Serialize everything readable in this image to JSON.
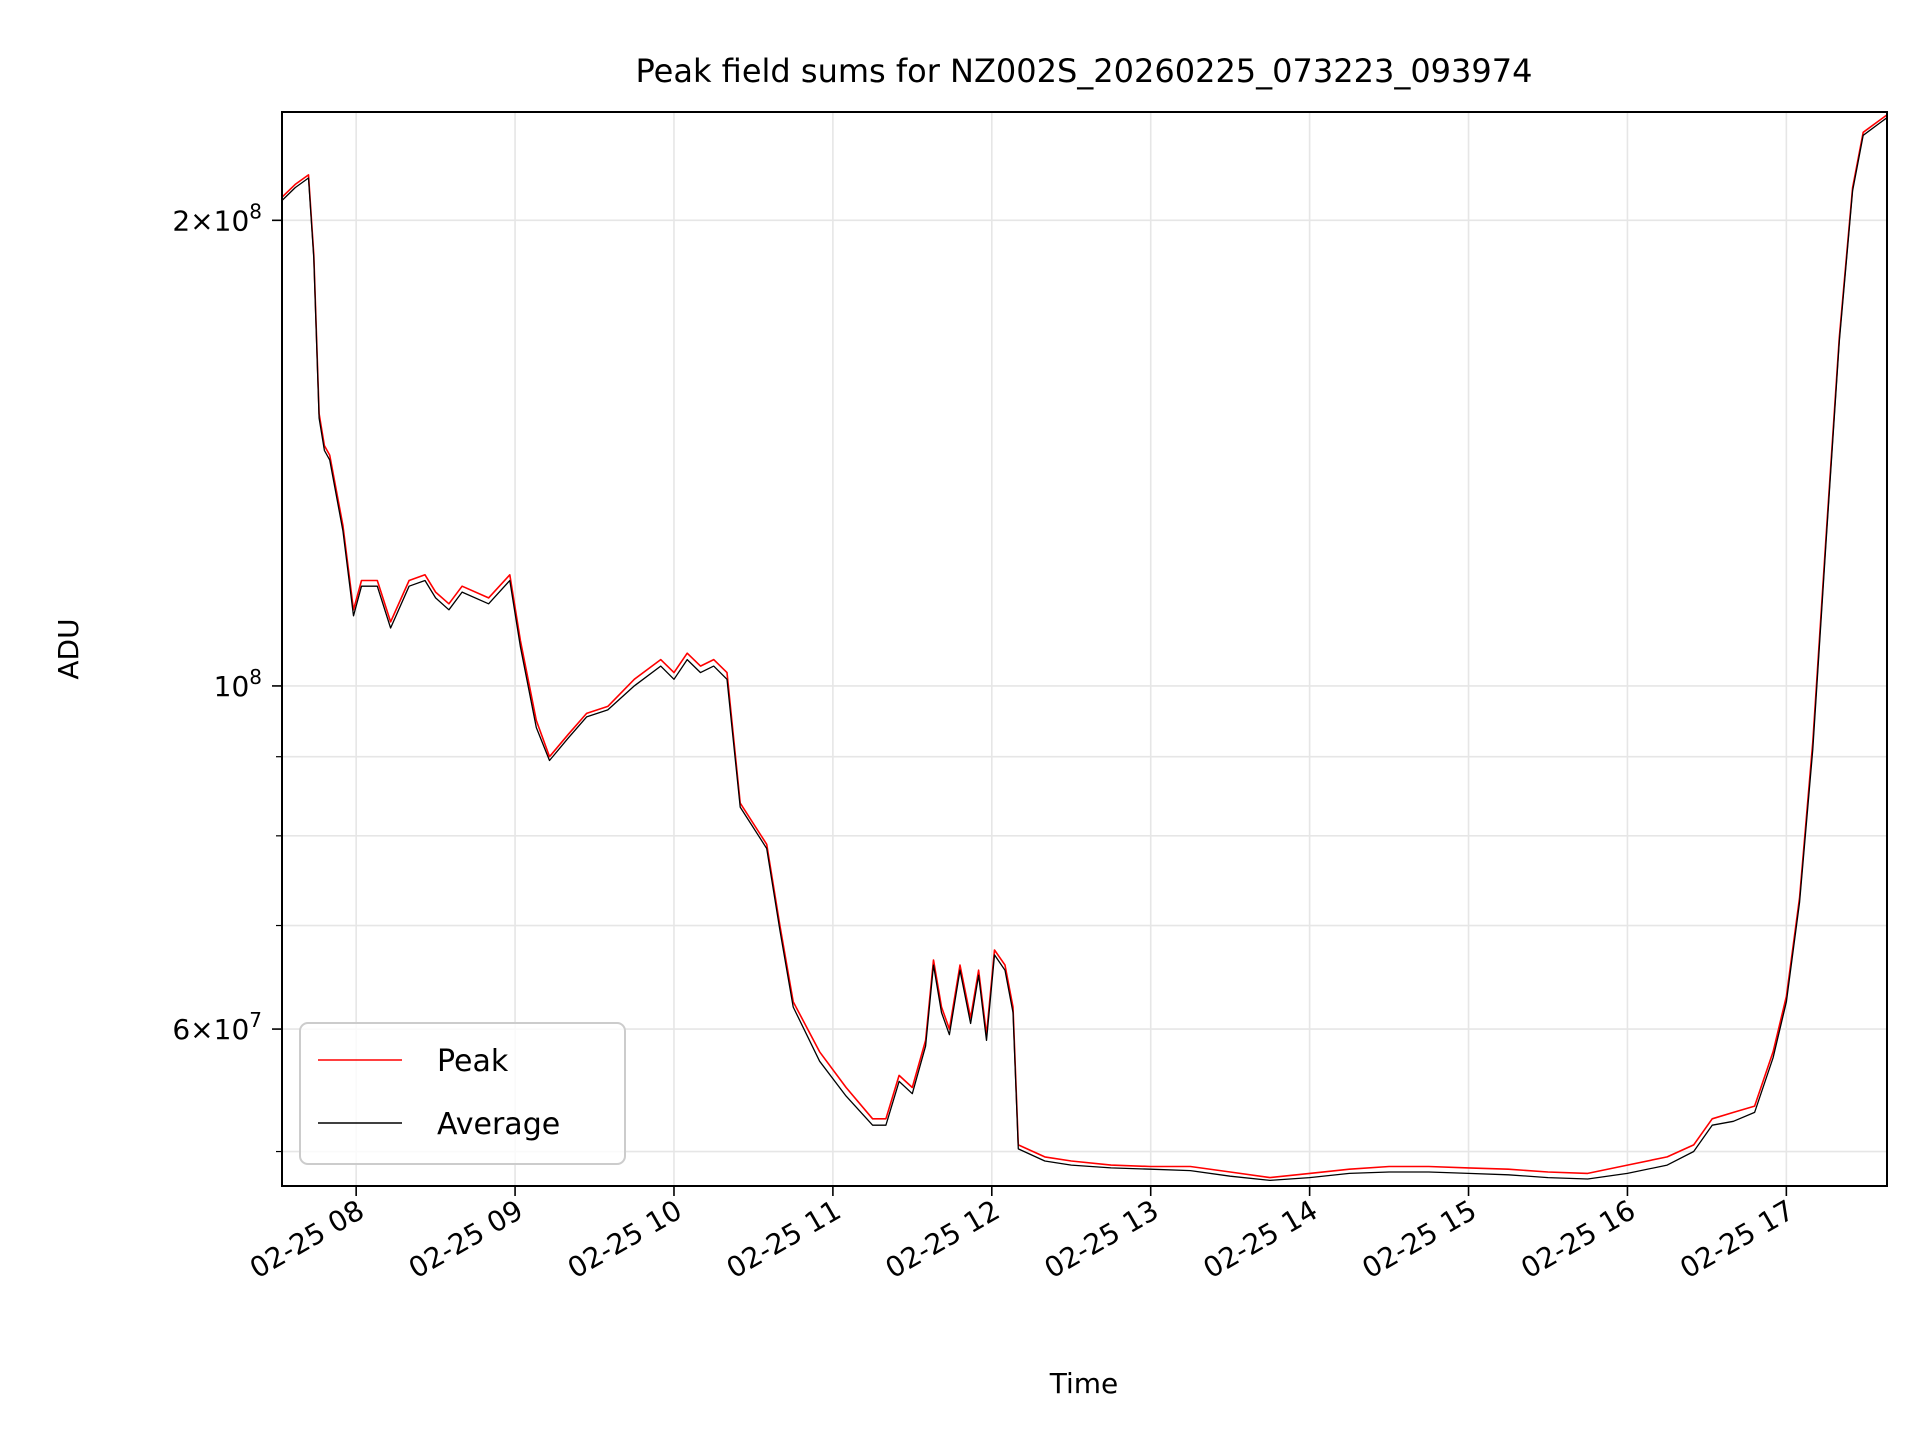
{
  "chart_data": {
    "type": "line",
    "title": "Peak field sums for NZ002S_20260225_073223_093974",
    "xlabel": "Time",
    "ylabel": "ADU",
    "yscale": "log",
    "grid": true,
    "legend_position": "lower-left",
    "xlim": [
      "2026-02-25 07:32",
      "2026-02-25 17:38"
    ],
    "ylim": [
      47500000,
      235000000
    ],
    "x_ticks": [
      {
        "t": "2026-02-25 08:00",
        "label": "02-25 08"
      },
      {
        "t": "2026-02-25 09:00",
        "label": "02-25 09"
      },
      {
        "t": "2026-02-25 10:00",
        "label": "02-25 10"
      },
      {
        "t": "2026-02-25 11:00",
        "label": "02-25 11"
      },
      {
        "t": "2026-02-25 12:00",
        "label": "02-25 12"
      },
      {
        "t": "2026-02-25 13:00",
        "label": "02-25 13"
      },
      {
        "t": "2026-02-25 14:00",
        "label": "02-25 14"
      },
      {
        "t": "2026-02-25 15:00",
        "label": "02-25 15"
      },
      {
        "t": "2026-02-25 16:00",
        "label": "02-25 16"
      },
      {
        "t": "2026-02-25 17:00",
        "label": "02-25 17"
      }
    ],
    "y_major_ticks": [
      {
        "value": 60000000,
        "base": "6",
        "exp": "7"
      },
      {
        "value": 100000000,
        "base": "",
        "exp": "8"
      },
      {
        "value": 200000000,
        "base": "2",
        "exp": "8"
      }
    ],
    "y_minor_ticks": [
      50000000,
      70000000,
      80000000,
      90000000
    ],
    "series": [
      {
        "name": "Peak",
        "color": "#ff0000",
        "points": [
          [
            "2026-02-25 07:32",
            207000000
          ],
          [
            "2026-02-25 07:37",
            211000000
          ],
          [
            "2026-02-25 07:42",
            214000000
          ],
          [
            "2026-02-25 07:44",
            190000000
          ],
          [
            "2026-02-25 07:46",
            150000000
          ],
          [
            "2026-02-25 07:48",
            143000000
          ],
          [
            "2026-02-25 07:50",
            141000000
          ],
          [
            "2026-02-25 07:55",
            127000000
          ],
          [
            "2026-02-25 07:59",
            112000000
          ],
          [
            "2026-02-25 08:02",
            117000000
          ],
          [
            "2026-02-25 08:08",
            117000000
          ],
          [
            "2026-02-25 08:13",
            110000000
          ],
          [
            "2026-02-25 08:20",
            117000000
          ],
          [
            "2026-02-25 08:26",
            118000000
          ],
          [
            "2026-02-25 08:30",
            115000000
          ],
          [
            "2026-02-25 08:35",
            113000000
          ],
          [
            "2026-02-25 08:40",
            116000000
          ],
          [
            "2026-02-25 08:50",
            114000000
          ],
          [
            "2026-02-25 08:58",
            118000000
          ],
          [
            "2026-02-25 09:02",
            107000000
          ],
          [
            "2026-02-25 09:08",
            95000000
          ],
          [
            "2026-02-25 09:13",
            90000000
          ],
          [
            "2026-02-25 09:20",
            93000000
          ],
          [
            "2026-02-25 09:27",
            96000000
          ],
          [
            "2026-02-25 09:35",
            97000000
          ],
          [
            "2026-02-25 09:45",
            101000000
          ],
          [
            "2026-02-25 09:55",
            104000000
          ],
          [
            "2026-02-25 10:00",
            102000000
          ],
          [
            "2026-02-25 10:05",
            105000000
          ],
          [
            "2026-02-25 10:10",
            103000000
          ],
          [
            "2026-02-25 10:15",
            104000000
          ],
          [
            "2026-02-25 10:20",
            102000000
          ],
          [
            "2026-02-25 10:25",
            84000000
          ],
          [
            "2026-02-25 10:35",
            79000000
          ],
          [
            "2026-02-25 10:40",
            70000000
          ],
          [
            "2026-02-25 10:45",
            62500000
          ],
          [
            "2026-02-25 10:55",
            58000000
          ],
          [
            "2026-02-25 11:05",
            55000000
          ],
          [
            "2026-02-25 11:15",
            52500000
          ],
          [
            "2026-02-25 11:20",
            52500000
          ],
          [
            "2026-02-25 11:25",
            56000000
          ],
          [
            "2026-02-25 11:30",
            55000000
          ],
          [
            "2026-02-25 11:35",
            59000000
          ],
          [
            "2026-02-25 11:38",
            66500000
          ],
          [
            "2026-02-25 11:41",
            62000000
          ],
          [
            "2026-02-25 11:44",
            60000000
          ],
          [
            "2026-02-25 11:48",
            66000000
          ],
          [
            "2026-02-25 11:52",
            61000000
          ],
          [
            "2026-02-25 11:55",
            65500000
          ],
          [
            "2026-02-25 11:58",
            59500000
          ],
          [
            "2026-02-25 12:01",
            67500000
          ],
          [
            "2026-02-25 12:05",
            66000000
          ],
          [
            "2026-02-25 12:08",
            62000000
          ],
          [
            "2026-02-25 12:10",
            50500000
          ],
          [
            "2026-02-25 12:20",
            49600000
          ],
          [
            "2026-02-25 12:30",
            49300000
          ],
          [
            "2026-02-25 12:45",
            49000000
          ],
          [
            "2026-02-25 13:00",
            48900000
          ],
          [
            "2026-02-25 13:15",
            48900000
          ],
          [
            "2026-02-25 13:30",
            48500000
          ],
          [
            "2026-02-25 13:45",
            48100000
          ],
          [
            "2026-02-25 14:00",
            48400000
          ],
          [
            "2026-02-25 14:15",
            48700000
          ],
          [
            "2026-02-25 14:30",
            48900000
          ],
          [
            "2026-02-25 14:45",
            48900000
          ],
          [
            "2026-02-25 15:00",
            48800000
          ],
          [
            "2026-02-25 15:15",
            48700000
          ],
          [
            "2026-02-25 15:30",
            48500000
          ],
          [
            "2026-02-25 15:45",
            48400000
          ],
          [
            "2026-02-25 16:00",
            49000000
          ],
          [
            "2026-02-25 16:15",
            49600000
          ],
          [
            "2026-02-25 16:25",
            50500000
          ],
          [
            "2026-02-25 16:32",
            52500000
          ],
          [
            "2026-02-25 16:40",
            53000000
          ],
          [
            "2026-02-25 16:48",
            53500000
          ],
          [
            "2026-02-25 16:55",
            58000000
          ],
          [
            "2026-02-25 17:00",
            63000000
          ],
          [
            "2026-02-25 17:05",
            73000000
          ],
          [
            "2026-02-25 17:10",
            92000000
          ],
          [
            "2026-02-25 17:15",
            125000000
          ],
          [
            "2026-02-25 17:20",
            168000000
          ],
          [
            "2026-02-25 17:25",
            210000000
          ],
          [
            "2026-02-25 17:29",
            228000000
          ],
          [
            "2026-02-25 17:35",
            232000000
          ],
          [
            "2026-02-25 17:38",
            234000000
          ]
        ]
      },
      {
        "name": "Average",
        "color": "#000000",
        "points": [
          [
            "2026-02-25 07:32",
            206000000
          ],
          [
            "2026-02-25 07:37",
            210000000
          ],
          [
            "2026-02-25 07:42",
            213000000
          ],
          [
            "2026-02-25 07:44",
            189000000
          ],
          [
            "2026-02-25 07:46",
            149000000
          ],
          [
            "2026-02-25 07:48",
            142000000
          ],
          [
            "2026-02-25 07:50",
            140000000
          ],
          [
            "2026-02-25 07:55",
            126000000
          ],
          [
            "2026-02-25 07:59",
            111000000
          ],
          [
            "2026-02-25 08:02",
            116000000
          ],
          [
            "2026-02-25 08:08",
            116000000
          ],
          [
            "2026-02-25 08:13",
            109000000
          ],
          [
            "2026-02-25 08:20",
            116000000
          ],
          [
            "2026-02-25 08:26",
            117000000
          ],
          [
            "2026-02-25 08:30",
            114000000
          ],
          [
            "2026-02-25 08:35",
            112000000
          ],
          [
            "2026-02-25 08:40",
            115000000
          ],
          [
            "2026-02-25 08:50",
            113000000
          ],
          [
            "2026-02-25 08:58",
            117000000
          ],
          [
            "2026-02-25 09:02",
            106000000
          ],
          [
            "2026-02-25 09:08",
            94000000
          ],
          [
            "2026-02-25 09:13",
            89500000
          ],
          [
            "2026-02-25 09:20",
            92500000
          ],
          [
            "2026-02-25 09:27",
            95500000
          ],
          [
            "2026-02-25 09:35",
            96500000
          ],
          [
            "2026-02-25 09:45",
            100000000
          ],
          [
            "2026-02-25 09:55",
            103000000
          ],
          [
            "2026-02-25 10:00",
            101000000
          ],
          [
            "2026-02-25 10:05",
            104000000
          ],
          [
            "2026-02-25 10:10",
            102000000
          ],
          [
            "2026-02-25 10:15",
            103000000
          ],
          [
            "2026-02-25 10:20",
            101000000
          ],
          [
            "2026-02-25 10:25",
            83500000
          ],
          [
            "2026-02-25 10:35",
            78500000
          ],
          [
            "2026-02-25 10:40",
            69500000
          ],
          [
            "2026-02-25 10:45",
            62000000
          ],
          [
            "2026-02-25 10:55",
            57200000
          ],
          [
            "2026-02-25 11:05",
            54300000
          ],
          [
            "2026-02-25 11:15",
            52000000
          ],
          [
            "2026-02-25 11:20",
            52000000
          ],
          [
            "2026-02-25 11:25",
            55500000
          ],
          [
            "2026-02-25 11:30",
            54500000
          ],
          [
            "2026-02-25 11:35",
            58500000
          ],
          [
            "2026-02-25 11:38",
            66000000
          ],
          [
            "2026-02-25 11:41",
            61500000
          ],
          [
            "2026-02-25 11:44",
            59500000
          ],
          [
            "2026-02-25 11:48",
            65500000
          ],
          [
            "2026-02-25 11:52",
            60500000
          ],
          [
            "2026-02-25 11:55",
            65000000
          ],
          [
            "2026-02-25 11:58",
            59000000
          ],
          [
            "2026-02-25 12:01",
            67000000
          ],
          [
            "2026-02-25 12:05",
            65500000
          ],
          [
            "2026-02-25 12:08",
            61500000
          ],
          [
            "2026-02-25 12:10",
            50200000
          ],
          [
            "2026-02-25 12:20",
            49300000
          ],
          [
            "2026-02-25 12:30",
            49000000
          ],
          [
            "2026-02-25 12:45",
            48800000
          ],
          [
            "2026-02-25 13:00",
            48700000
          ],
          [
            "2026-02-25 13:15",
            48600000
          ],
          [
            "2026-02-25 13:30",
            48200000
          ],
          [
            "2026-02-25 13:45",
            47900000
          ],
          [
            "2026-02-25 14:00",
            48100000
          ],
          [
            "2026-02-25 14:15",
            48400000
          ],
          [
            "2026-02-25 14:30",
            48500000
          ],
          [
            "2026-02-25 14:45",
            48500000
          ],
          [
            "2026-02-25 15:00",
            48400000
          ],
          [
            "2026-02-25 15:15",
            48300000
          ],
          [
            "2026-02-25 15:30",
            48100000
          ],
          [
            "2026-02-25 15:45",
            48000000
          ],
          [
            "2026-02-25 16:00",
            48400000
          ],
          [
            "2026-02-25 16:15",
            49000000
          ],
          [
            "2026-02-25 16:25",
            50000000
          ],
          [
            "2026-02-25 16:32",
            52000000
          ],
          [
            "2026-02-25 16:40",
            52300000
          ],
          [
            "2026-02-25 16:48",
            53000000
          ],
          [
            "2026-02-25 16:55",
            57500000
          ],
          [
            "2026-02-25 17:00",
            62500000
          ],
          [
            "2026-02-25 17:05",
            72500000
          ],
          [
            "2026-02-25 17:10",
            91000000
          ],
          [
            "2026-02-25 17:15",
            124000000
          ],
          [
            "2026-02-25 17:20",
            167000000
          ],
          [
            "2026-02-25 17:25",
            209000000
          ],
          [
            "2026-02-25 17:29",
            227000000
          ],
          [
            "2026-02-25 17:35",
            231000000
          ],
          [
            "2026-02-25 17:38",
            233000000
          ]
        ]
      }
    ]
  }
}
